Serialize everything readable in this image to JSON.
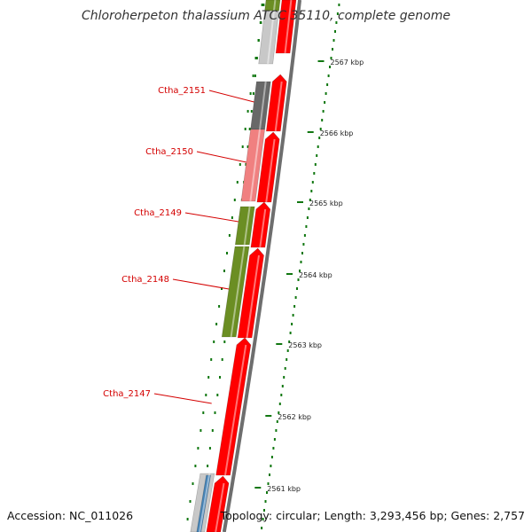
{
  "title": "Chloroherpeton thalassium ATCC 35110, complete genome",
  "footer": {
    "accession": "Accession: NC_011026",
    "summary": "Topology: circular; Length: 3,293,456 bp; Genes: 2,757"
  },
  "colors": {
    "background": "#ffffff",
    "backbone": "#6e6e6e",
    "forward_gene": "#ff0000",
    "label": "#d40000",
    "tick": "#117711",
    "tick_label": "#222222"
  },
  "tick_unit": "kbp",
  "ruler_ticks": [
    {
      "label": "2567 kbp",
      "kbp": 2567
    },
    {
      "label": "2566 kbp",
      "kbp": 2566
    },
    {
      "label": "2565 kbp",
      "kbp": 2565
    },
    {
      "label": "2564 kbp",
      "kbp": 2564
    },
    {
      "label": "2563 kbp",
      "kbp": 2563
    },
    {
      "label": "2562 kbp",
      "kbp": 2562
    },
    {
      "label": "2561 kbp",
      "kbp": 2561
    }
  ],
  "labeled_genes": [
    {
      "label": "Ctha_2151",
      "color": "#686868"
    },
    {
      "label": "Ctha_2150",
      "color": "#f08080"
    },
    {
      "label": "Ctha_2149",
      "color": "#6b8e23"
    },
    {
      "label": "Ctha_2148",
      "color": "#6b8e23"
    },
    {
      "label": "Ctha_2147",
      "color": "#ff0000"
    }
  ]
}
